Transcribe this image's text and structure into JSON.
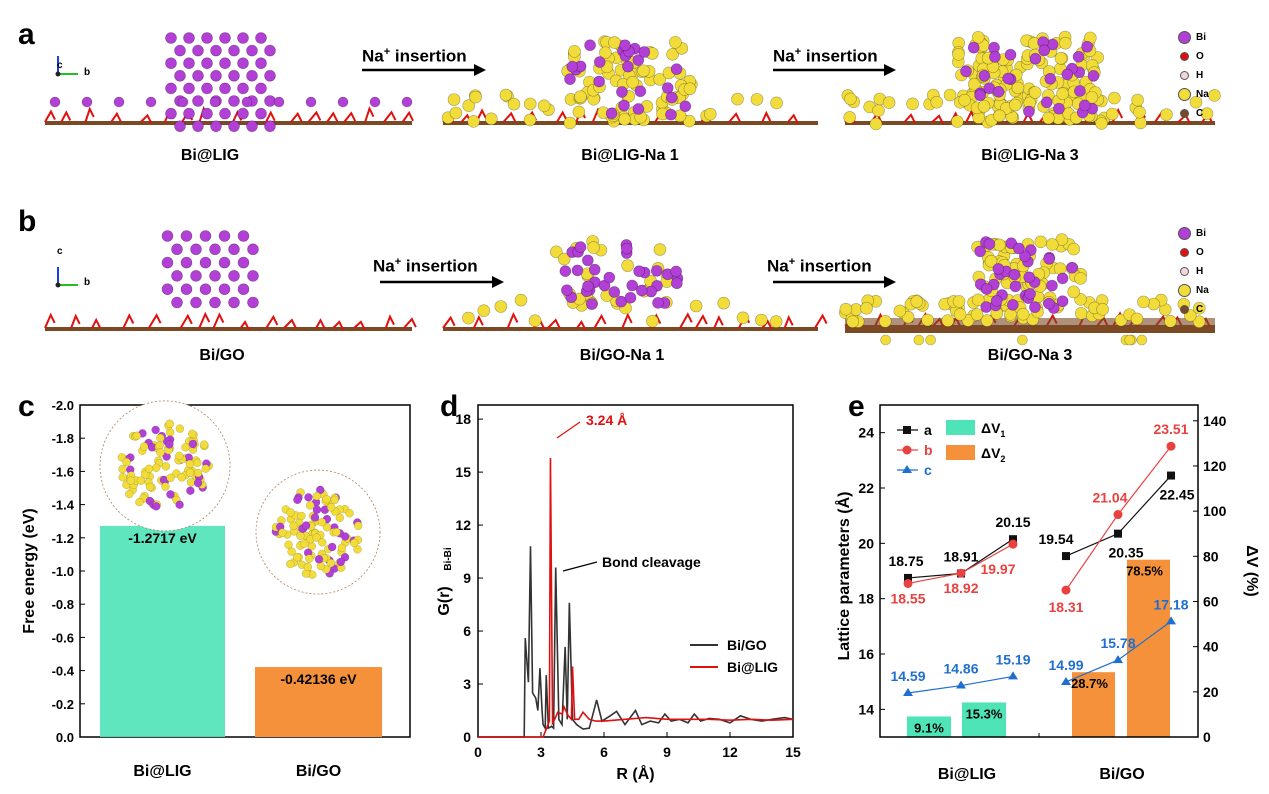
{
  "panels": {
    "a": {
      "label": "a",
      "structures": [
        "Bi@LIG",
        "Bi@LIG-Na 1",
        "Bi@LIG-Na 3"
      ],
      "arrow_text": "Na",
      "arrow_sup": "+",
      "arrow_rest": " insertion"
    },
    "b": {
      "label": "b",
      "structures": [
        "Bi/GO",
        "Bi/GO-Na 1",
        "Bi/GO-Na 3"
      ],
      "arrow_text": "Na",
      "arrow_sup": "+",
      "arrow_rest": " insertion"
    },
    "atom_legend": [
      {
        "label": "Bi",
        "color": "#b23fd6"
      },
      {
        "label": "O",
        "color": "#e0100e"
      },
      {
        "label": "H",
        "color": "#f5d6d6"
      },
      {
        "label": "Na",
        "color": "#f2dc3a"
      },
      {
        "label": "C",
        "color": "#7b4a24"
      }
    ],
    "axes_labels": {
      "c": "c",
      "b": "b"
    }
  },
  "chart_data": [
    {
      "panel": "c",
      "type": "bar",
      "categories": [
        "Bi@LIG",
        "Bi/GO"
      ],
      "values": [
        -1.2717,
        -0.42136
      ],
      "data_labels": [
        "-1.2717 eV",
        "-0.42136 eV"
      ],
      "colors": [
        "#4fe3b8",
        "#f5913a"
      ],
      "ylabel": "Free energy (eV)",
      "ylim": [
        0,
        -2.0
      ],
      "y_inverted": true,
      "yticks": [
        "-2.0",
        "-1.8",
        "-1.6",
        "-1.4",
        "-1.2",
        "-1.0",
        "-0.8",
        "-0.6",
        "-0.4",
        "-0.2",
        "0.0"
      ]
    },
    {
      "panel": "d",
      "type": "line",
      "xlabel": "R (Å)",
      "ylabel": "G(r)",
      "ylabel_sub": "Bi-Bi",
      "xlim": [
        0,
        15
      ],
      "ylim": [
        0,
        18
      ],
      "xticks": [
        "0",
        "3",
        "6",
        "9",
        "12",
        "15"
      ],
      "yticks": [
        "0",
        "3",
        "6",
        "9",
        "12",
        "15",
        "18"
      ],
      "legend_position": "right",
      "annotations": [
        "3.24 Å",
        "Bond cleavage"
      ],
      "series": [
        {
          "name": "Bi/GO",
          "color": "#333333",
          "points": [
            [
              0,
              0
            ],
            [
              2.2,
              0
            ],
            [
              2.25,
              5.6
            ],
            [
              2.4,
              3.1
            ],
            [
              2.5,
              10.8
            ],
            [
              2.6,
              2.5
            ],
            [
              2.75,
              2.2
            ],
            [
              2.85,
              1.5
            ],
            [
              2.95,
              3.9
            ],
            [
              3.05,
              1.5
            ],
            [
              3.1,
              0.7
            ],
            [
              3.2,
              0.5
            ],
            [
              3.25,
              3.5
            ],
            [
              3.35,
              0.5
            ],
            [
              3.5,
              0.6
            ],
            [
              3.6,
              0.5
            ],
            [
              3.7,
              9.6
            ],
            [
              3.85,
              1
            ],
            [
              4.0,
              0.7
            ],
            [
              4.15,
              5.1
            ],
            [
              4.25,
              1
            ],
            [
              4.35,
              7.6
            ],
            [
              4.5,
              1
            ],
            [
              4.7,
              0.7
            ],
            [
              5.0,
              0.45
            ],
            [
              5.3,
              0.5
            ],
            [
              5.65,
              2.1
            ],
            [
              5.9,
              0.9
            ],
            [
              6.3,
              1.2
            ],
            [
              6.6,
              1.45
            ],
            [
              7,
              0.7
            ],
            [
              7.5,
              1.5
            ],
            [
              7.8,
              0.7
            ],
            [
              8.2,
              0.9
            ],
            [
              8.6,
              0.8
            ],
            [
              8.9,
              1.3
            ],
            [
              9.2,
              0.9
            ],
            [
              9.6,
              1.0
            ],
            [
              10,
              0.8
            ],
            [
              10.3,
              1.3
            ],
            [
              10.6,
              0.9
            ],
            [
              11,
              1.05
            ],
            [
              11.5,
              1.0
            ],
            [
              12,
              0.8
            ],
            [
              12.5,
              1.2
            ],
            [
              13,
              1.0
            ],
            [
              13.5,
              0.9
            ],
            [
              14,
              1.0
            ],
            [
              14.6,
              1.1
            ],
            [
              15,
              1.0
            ]
          ]
        },
        {
          "name": "Bi@LIG",
          "color": "#e01010",
          "points": [
            [
              0,
              0
            ],
            [
              3.1,
              0
            ],
            [
              3.3,
              0.6
            ],
            [
              3.4,
              0.9
            ],
            [
              3.45,
              15.8
            ],
            [
              3.55,
              0.8
            ],
            [
              3.65,
              1
            ],
            [
              3.8,
              1.4
            ],
            [
              4.0,
              1.3
            ],
            [
              4.1,
              1.7
            ],
            [
              4.3,
              1.2
            ],
            [
              4.45,
              1.0
            ],
            [
              4.5,
              4.0
            ],
            [
              4.6,
              1.0
            ],
            [
              4.8,
              1.0
            ],
            [
              5.0,
              1.4
            ],
            [
              5.3,
              1.0
            ],
            [
              5.6,
              0.9
            ],
            [
              6,
              0.9
            ],
            [
              6.5,
              0.95
            ],
            [
              7,
              1.0
            ],
            [
              8,
              1.1
            ],
            [
              9,
              1.0
            ],
            [
              10,
              1.0
            ],
            [
              11,
              1.0
            ],
            [
              12,
              0.95
            ],
            [
              13,
              1.0
            ],
            [
              14,
              0.95
            ],
            [
              15,
              1.0
            ]
          ]
        }
      ]
    },
    {
      "panel": "e",
      "type": "line+bar",
      "categories": [
        "Bi@LIG",
        "Bi/GO"
      ],
      "ylabel": "Lattice parameters (Å)",
      "y2label": "ΔV (%)",
      "ylim": [
        13,
        25
      ],
      "y2lim": [
        0,
        147
      ],
      "yticks": [
        "14",
        "16",
        "18",
        "20",
        "22",
        "24"
      ],
      "y2ticks": [
        "0",
        "20",
        "40",
        "60",
        "80",
        "100",
        "120",
        "140"
      ],
      "legend_position": "top-left",
      "series": [
        {
          "name": "a",
          "marker": "square",
          "color": "#111111",
          "groups": [
            [
              18.75,
              18.91,
              20.15
            ],
            [
              19.54,
              20.35,
              22.45
            ]
          ],
          "labels": [
            [
              "18.75",
              "18.91",
              "20.15"
            ],
            [
              "19.54",
              "20.35",
              "22.45"
            ]
          ]
        },
        {
          "name": "b",
          "marker": "circle",
          "color": "#e8413f",
          "groups": [
            [
              18.55,
              18.92,
              19.97
            ],
            [
              18.31,
              21.04,
              23.51
            ]
          ],
          "labels": [
            [
              "18.55",
              "18.92",
              "19.97"
            ],
            [
              "18.31",
              "21.04",
              "23.51"
            ]
          ]
        },
        {
          "name": "c",
          "marker": "triangle",
          "color": "#1f6fd1",
          "groups": [
            [
              14.59,
              14.86,
              15.19
            ],
            [
              14.99,
              15.78,
              17.18
            ]
          ],
          "labels": [
            [
              "14.59",
              "14.86",
              "15.19"
            ],
            [
              "14.99",
              "15.78",
              "17.18"
            ]
          ]
        }
      ],
      "bars": [
        {
          "name": "ΔV",
          "sub": "1",
          "color": "#4fe3b8",
          "values": [
            9.1,
            15.3
          ],
          "labels": [
            "9.1%",
            "15.3%"
          ]
        },
        {
          "name": "ΔV",
          "sub": "2",
          "color": "#f5913a",
          "values": [
            28.7,
            78.5
          ],
          "labels": [
            "28.7%",
            "78.5%"
          ]
        }
      ]
    }
  ],
  "panel_letters": {
    "c": "c",
    "d": "d",
    "e": "e"
  }
}
